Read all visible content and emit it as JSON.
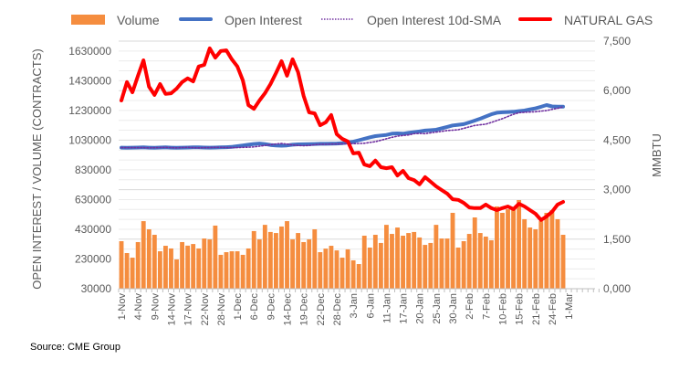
{
  "chart_data": {
    "type": "bar+line",
    "title": "",
    "source": "Source: CME Group",
    "ylabel_left": "OPEN INTEREST / VOLUME (CONTRACTS)",
    "ylabel_right": "MMBTU",
    "ylim_left": [
      30000,
      1630000
    ],
    "ylim_right": [
      0,
      7500
    ],
    "left_ticks": [
      "30000",
      "230000",
      "430000",
      "630000",
      "830000",
      "1030000",
      "1230000",
      "1430000",
      "1630000"
    ],
    "right_ticks": [
      "0,000",
      "1,500",
      "3,000",
      "4,500",
      "6,000",
      "7,500"
    ],
    "x_labels": [
      "1-Nov",
      "4-Nov",
      "9-Nov",
      "14-Nov",
      "17-Nov",
      "22-Nov",
      "28-Nov",
      "1-Dec",
      "6-Dec",
      "9-Dec",
      "14-Dec",
      "19-Dec",
      "22-Dec",
      "28-Dec",
      "3-Jan",
      "6-Jan",
      "11-Jan",
      "17-Jan",
      "20-Jan",
      "25-Jan",
      "30-Jan",
      "2-Feb",
      "7-Feb",
      "10-Feb",
      "15-Feb",
      "21-Feb",
      "24-Feb",
      "1-Mar"
    ],
    "x_label_every": 3,
    "x_slots": 87,
    "grid": true,
    "legend_position": "top",
    "colors": {
      "volume": "#f58d3f",
      "open_interest": "#4472c4",
      "sma": "#7030a0",
      "gas": "#ff0000"
    },
    "series": [
      {
        "name": "Volume",
        "type": "bar",
        "axis": "left",
        "values": [
          350000,
          270000,
          239000,
          344000,
          485000,
          430000,
          393000,
          282000,
          319000,
          301000,
          227000,
          344000,
          320000,
          331000,
          301000,
          368000,
          362000,
          455000,
          258000,
          276000,
          282000,
          282000,
          258000,
          301000,
          418000,
          362000,
          460000,
          412000,
          405000,
          449000,
          485000,
          362000,
          405000,
          344000,
          362000,
          430000,
          276000,
          300000,
          319000,
          288000,
          239000,
          295000,
          221000,
          196000,
          387000,
          307000,
          393000,
          338000,
          460000,
          399000,
          442000,
          387000,
          405000,
          412000,
          375000,
          325000,
          338000,
          460000,
          368000,
          368000,
          541000,
          307000,
          350000,
          399000,
          510000,
          405000,
          381000,
          356000,
          584000,
          541000,
          565000,
          572000,
          627000,
          498000,
          442000,
          430000,
          485000,
          541000,
          559000,
          498000,
          393000
        ]
      },
      {
        "name": "Open Interest",
        "type": "line",
        "axis": "left",
        "values": [
          980000,
          979000,
          980000,
          981000,
          982000,
          980000,
          979000,
          981000,
          982000,
          980000,
          979000,
          980000,
          981000,
          982000,
          982000,
          981000,
          980000,
          981000,
          982000,
          983000,
          985000,
          990000,
          995000,
          1000000,
          1005000,
          1008000,
          1004000,
          998000,
          995000,
          993000,
          995000,
          1000000,
          1002000,
          1003000,
          1004000,
          1005000,
          1006000,
          1006000,
          1007000,
          1008000,
          1010000,
          1015000,
          1020000,
          1030000,
          1040000,
          1050000,
          1058000,
          1062000,
          1066000,
          1074000,
          1076000,
          1074000,
          1080000,
          1085000,
          1090000,
          1095000,
          1098000,
          1101000,
          1110000,
          1120000,
          1130000,
          1134000,
          1138000,
          1150000,
          1162000,
          1175000,
          1190000,
          1205000,
          1215000,
          1218000,
          1220000,
          1222000,
          1226000,
          1230000,
          1238000,
          1245000,
          1255000,
          1267000,
          1258000,
          1256000,
          1256000
        ]
      },
      {
        "name": "Open Interest 10d-SMA",
        "type": "line-dotted",
        "axis": "left",
        "values": [
          980000,
          980000,
          980000,
          980000,
          980000,
          979000,
          980000,
          981000,
          982000,
          980000,
          979000,
          981000,
          982000,
          980000,
          979000,
          980000,
          981000,
          982000,
          982000,
          981000,
          980000,
          981000,
          982000,
          983000,
          985000,
          990000,
          995000,
          1000000,
          1005000,
          1008000,
          1004000,
          998000,
          995000,
          993000,
          995000,
          1000000,
          1002000,
          1003000,
          1004000,
          1005000,
          1006000,
          1006000,
          1007000,
          1008000,
          1010000,
          1015000,
          1020000,
          1030000,
          1040000,
          1050000,
          1058000,
          1062000,
          1066000,
          1074000,
          1076000,
          1074000,
          1080000,
          1085000,
          1090000,
          1095000,
          1098000,
          1101000,
          1110000,
          1120000,
          1130000,
          1134000,
          1138000,
          1150000,
          1162000,
          1175000,
          1190000,
          1205000,
          1215000,
          1218000,
          1220000,
          1222000,
          1226000,
          1230000,
          1238000,
          1245000,
          1255000
        ]
      },
      {
        "name": "NATURAL GAS",
        "type": "line",
        "axis": "right",
        "values": [
          5700,
          6260,
          5950,
          6450,
          6920,
          6120,
          5870,
          6200,
          5900,
          5920,
          6060,
          6260,
          6370,
          6280,
          6730,
          6780,
          7280,
          7000,
          7200,
          7220,
          6950,
          6730,
          6310,
          5560,
          5450,
          5700,
          5920,
          6200,
          6530,
          6890,
          6450,
          6950,
          6560,
          5840,
          5340,
          5310,
          4950,
          5040,
          5260,
          4680,
          4540,
          4460,
          4100,
          4120,
          3760,
          3710,
          3880,
          3680,
          3650,
          3680,
          3430,
          3570,
          3350,
          3290,
          3160,
          3380,
          3240,
          3100,
          2990,
          2880,
          2710,
          2690,
          2600,
          2460,
          2440,
          2440,
          2550,
          2440,
          2380,
          2440,
          2490,
          2410,
          2570,
          2490,
          2380,
          2270,
          2080,
          2190,
          2330,
          2550,
          2630
        ]
      }
    ]
  }
}
